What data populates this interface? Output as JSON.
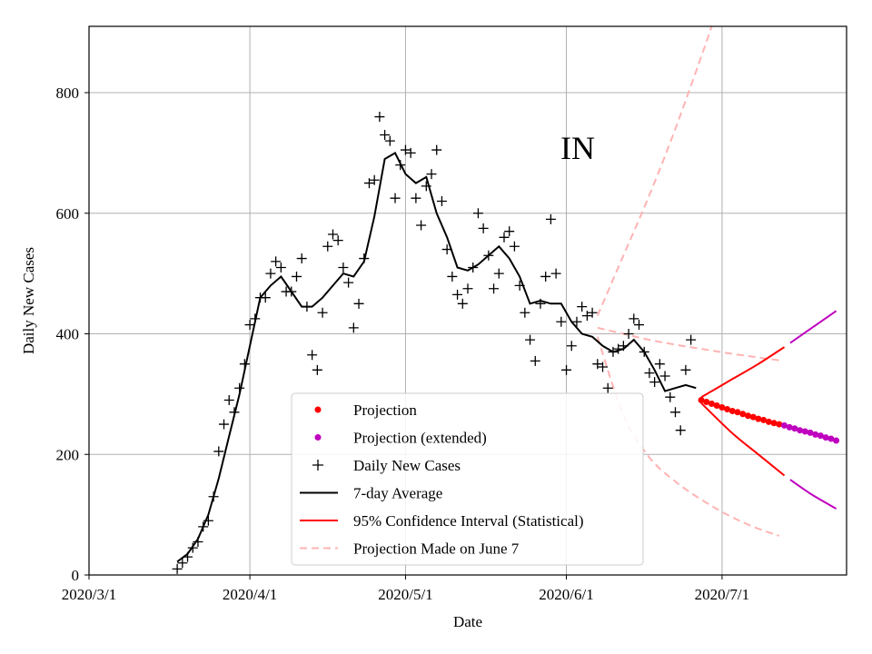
{
  "chart_data": {
    "type": "line",
    "title": "",
    "annotation": "IN",
    "xlabel": "Date",
    "ylabel": "Daily New Cases",
    "x_ticks": [
      "2020/3/1",
      "2020/4/1",
      "2020/5/1",
      "2020/6/1",
      "2020/7/1"
    ],
    "y_ticks": [
      "0",
      "200",
      "400",
      "600",
      "800"
    ],
    "xlim": [
      "2020-03-01",
      "2020-07-25"
    ],
    "ylim": [
      0,
      910
    ],
    "grid": true,
    "legend_position": "lower-center",
    "legend": [
      {
        "label": "Projection",
        "marker": "dot",
        "color": "#ff0000"
      },
      {
        "label": "Projection (extended)",
        "marker": "dot",
        "color": "#bf00bf"
      },
      {
        "label": "Daily New Cases",
        "marker": "plus",
        "color": "#000000"
      },
      {
        "label": "7-day Average",
        "marker": "line",
        "color": "#000000"
      },
      {
        "label": "95% Confidence Interval (Statistical)",
        "marker": "line",
        "color": "#ff0000"
      },
      {
        "label": "Projection Made on June 7",
        "marker": "dash",
        "color": "#ffb3b3"
      }
    ],
    "series": [
      {
        "name": "Daily New Cases",
        "x": [
          "2020-03-18",
          "2020-03-19",
          "2020-03-20",
          "2020-03-21",
          "2020-03-22",
          "2020-03-23",
          "2020-03-24",
          "2020-03-25",
          "2020-03-26",
          "2020-03-27",
          "2020-03-28",
          "2020-03-29",
          "2020-03-30",
          "2020-03-31",
          "2020-04-01",
          "2020-04-02",
          "2020-04-03",
          "2020-04-04",
          "2020-04-05",
          "2020-04-06",
          "2020-04-07",
          "2020-04-08",
          "2020-04-09",
          "2020-04-10",
          "2020-04-11",
          "2020-04-12",
          "2020-04-13",
          "2020-04-14",
          "2020-04-15",
          "2020-04-16",
          "2020-04-17",
          "2020-04-18",
          "2020-04-19",
          "2020-04-20",
          "2020-04-21",
          "2020-04-22",
          "2020-04-23",
          "2020-04-24",
          "2020-04-25",
          "2020-04-26",
          "2020-04-27",
          "2020-04-28",
          "2020-04-29",
          "2020-04-30",
          "2020-05-01",
          "2020-05-02",
          "2020-05-03",
          "2020-05-04",
          "2020-05-05",
          "2020-05-06",
          "2020-05-07",
          "2020-05-08",
          "2020-05-09",
          "2020-05-10",
          "2020-05-11",
          "2020-05-12",
          "2020-05-13",
          "2020-05-14",
          "2020-05-15",
          "2020-05-16",
          "2020-05-17",
          "2020-05-18",
          "2020-05-19",
          "2020-05-20",
          "2020-05-21",
          "2020-05-22",
          "2020-05-23",
          "2020-05-24",
          "2020-05-25",
          "2020-05-26",
          "2020-05-27",
          "2020-05-28",
          "2020-05-29",
          "2020-05-30",
          "2020-05-31",
          "2020-06-01",
          "2020-06-02",
          "2020-06-03",
          "2020-06-04",
          "2020-06-05",
          "2020-06-06",
          "2020-06-07",
          "2020-06-08",
          "2020-06-09",
          "2020-06-10",
          "2020-06-11",
          "2020-06-12",
          "2020-06-13",
          "2020-06-14",
          "2020-06-15",
          "2020-06-16",
          "2020-06-17",
          "2020-06-18",
          "2020-06-19",
          "2020-06-20",
          "2020-06-21",
          "2020-06-22",
          "2020-06-23",
          "2020-06-24",
          "2020-06-25",
          "2020-06-26"
        ],
        "y": [
          10,
          20,
          30,
          45,
          55,
          80,
          90,
          130,
          205,
          250,
          290,
          270,
          310,
          350,
          415,
          425,
          460,
          460,
          500,
          520,
          510,
          470,
          470,
          495,
          525,
          445,
          365,
          340,
          435,
          545,
          565,
          555,
          510,
          485,
          410,
          450,
          525,
          650,
          655,
          760,
          730,
          720,
          625,
          680,
          705,
          700,
          625,
          580,
          645,
          665,
          705,
          620,
          540,
          495,
          465,
          450,
          475,
          510,
          600,
          575,
          530,
          475,
          500,
          560,
          570,
          545,
          480,
          435,
          390,
          355,
          450,
          495,
          590,
          500,
          420,
          340,
          380,
          420,
          445,
          430,
          435,
          350,
          345,
          310,
          370,
          375,
          380,
          400,
          425,
          415,
          370,
          335,
          320,
          350,
          330,
          295,
          270,
          240,
          340,
          390,
          null
        ]
      },
      {
        "name": "7-day Average",
        "x": [
          "2020-03-18",
          "2020-03-20",
          "2020-03-22",
          "2020-03-24",
          "2020-03-26",
          "2020-03-28",
          "2020-03-30",
          "2020-04-01",
          "2020-04-03",
          "2020-04-05",
          "2020-04-07",
          "2020-04-09",
          "2020-04-11",
          "2020-04-13",
          "2020-04-15",
          "2020-04-17",
          "2020-04-19",
          "2020-04-21",
          "2020-04-23",
          "2020-04-25",
          "2020-04-27",
          "2020-04-29",
          "2020-05-01",
          "2020-05-03",
          "2020-05-05",
          "2020-05-07",
          "2020-05-09",
          "2020-05-11",
          "2020-05-13",
          "2020-05-15",
          "2020-05-17",
          "2020-05-19",
          "2020-05-21",
          "2020-05-23",
          "2020-05-25",
          "2020-05-27",
          "2020-05-29",
          "2020-05-31",
          "2020-06-02",
          "2020-06-04",
          "2020-06-06",
          "2020-06-08",
          "2020-06-10",
          "2020-06-12",
          "2020-06-14",
          "2020-06-16",
          "2020-06-18",
          "2020-06-20",
          "2020-06-22",
          "2020-06-24",
          "2020-06-26"
        ],
        "y": [
          22,
          35,
          60,
          100,
          160,
          230,
          300,
          380,
          460,
          480,
          495,
          470,
          445,
          445,
          460,
          480,
          500,
          495,
          520,
          595,
          690,
          700,
          665,
          650,
          660,
          600,
          560,
          510,
          505,
          515,
          530,
          545,
          525,
          495,
          450,
          455,
          450,
          450,
          420,
          400,
          395,
          380,
          370,
          375,
          390,
          370,
          340,
          305,
          310,
          315,
          310
        ]
      },
      {
        "name": "Projection",
        "x": [
          "2020-06-27",
          "2020-06-28",
          "2020-06-29",
          "2020-06-30",
          "2020-07-01",
          "2020-07-02",
          "2020-07-03",
          "2020-07-04",
          "2020-07-05",
          "2020-07-06",
          "2020-07-07",
          "2020-07-08",
          "2020-07-09",
          "2020-07-10",
          "2020-07-11",
          "2020-07-12"
        ],
        "y": [
          290,
          287,
          284,
          281,
          278,
          275,
          272,
          270,
          267,
          264,
          262,
          259,
          257,
          254,
          252,
          250
        ]
      },
      {
        "name": "Projection (extended)",
        "x": [
          "2020-07-13",
          "2020-07-14",
          "2020-07-15",
          "2020-07-16",
          "2020-07-17",
          "2020-07-18",
          "2020-07-19",
          "2020-07-20",
          "2020-07-21",
          "2020-07-22",
          "2020-07-23"
        ],
        "y": [
          248,
          245,
          243,
          240,
          238,
          236,
          233,
          231,
          228,
          226,
          223
        ]
      },
      {
        "name": "95% Confidence Interval (Statistical)",
        "upper": {
          "x": [
            "2020-06-27",
            "2020-07-03",
            "2020-07-08",
            "2020-07-13",
            "2020-07-18",
            "2020-07-23"
          ],
          "y": [
            295,
            325,
            350,
            378,
            408,
            438
          ]
        },
        "lower": {
          "x": [
            "2020-06-27",
            "2020-07-03",
            "2020-07-08",
            "2020-07-13",
            "2020-07-18",
            "2020-07-23"
          ],
          "y": [
            285,
            235,
            200,
            165,
            135,
            110
          ]
        },
        "extended_from": "2020-07-13"
      },
      {
        "name": "Projection Made on June 7",
        "upper": {
          "x": [
            "2020-06-07",
            "2020-06-12",
            "2020-06-17",
            "2020-06-22",
            "2020-06-27",
            "2020-06-29"
          ],
          "y": [
            430,
            530,
            630,
            740,
            860,
            910
          ]
        },
        "middle": {
          "x": [
            "2020-06-07",
            "2020-06-12",
            "2020-06-17",
            "2020-06-22",
            "2020-06-27",
            "2020-07-02",
            "2020-07-07",
            "2020-07-12"
          ],
          "y": [
            410,
            400,
            390,
            382,
            375,
            368,
            362,
            356
          ]
        },
        "lower": {
          "x": [
            "2020-06-07",
            "2020-06-12",
            "2020-06-17",
            "2020-06-22",
            "2020-06-27",
            "2020-07-02",
            "2020-07-07",
            "2020-07-12"
          ],
          "y": [
            395,
            265,
            195,
            155,
            125,
            100,
            80,
            65
          ]
        }
      }
    ]
  }
}
